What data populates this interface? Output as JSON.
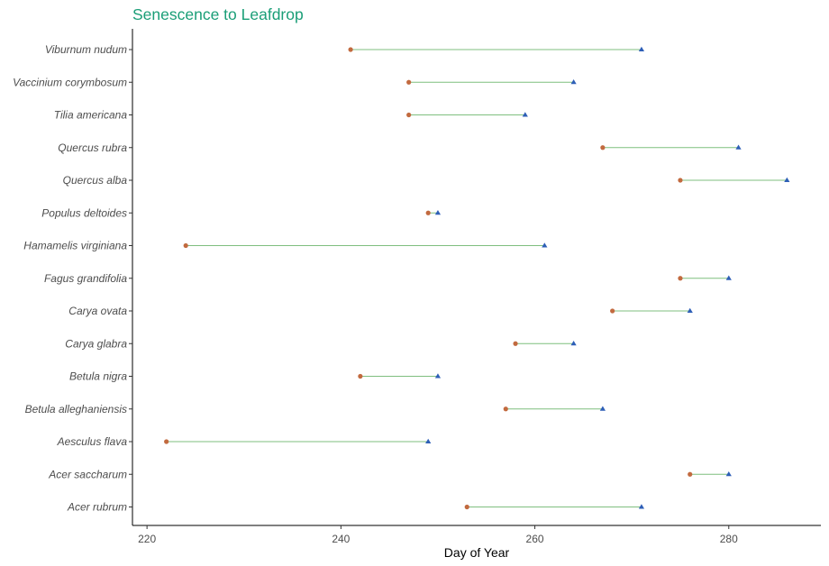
{
  "chart_data": {
    "type": "dumbbell",
    "title": "Senescence to Leafdrop",
    "xlabel": "Day of Year",
    "ylabel": "",
    "xlim": [
      218.5,
      289.5
    ],
    "xticks": [
      "220",
      "240",
      "260",
      "280"
    ],
    "xtick_values": [
      220,
      240,
      260,
      280
    ],
    "categories": [
      "Viburnum nudum",
      "Vaccinium corymbosum",
      "Tilia americana",
      "Quercus rubra",
      "Quercus alba",
      "Populus deltoides",
      "Hamamelis virginiana",
      "Fagus grandifolia",
      "Carya ovata",
      "Carya glabra",
      "Betula nigra",
      "Betula alleghaniensis",
      "Aesculus flava",
      "Acer saccharum",
      "Acer rubrum"
    ],
    "series": [
      {
        "marker": "circle",
        "values": [
          241,
          247,
          247,
          267,
          275,
          249,
          224,
          275,
          268,
          258,
          242,
          257,
          222,
          276,
          253
        ]
      },
      {
        "marker": "triangle",
        "values": [
          271,
          264,
          259,
          281,
          286,
          250,
          261,
          280,
          276,
          264,
          250,
          267,
          249,
          280,
          271
        ]
      }
    ],
    "colors": {
      "start_point": "#c26a3f",
      "end_point": "#2e5fb7",
      "segment": "#7fbf7f",
      "title": "#1a9e77",
      "axis": "#000000",
      "label": "#4d4d4d"
    },
    "grid": false,
    "legend": "none"
  }
}
